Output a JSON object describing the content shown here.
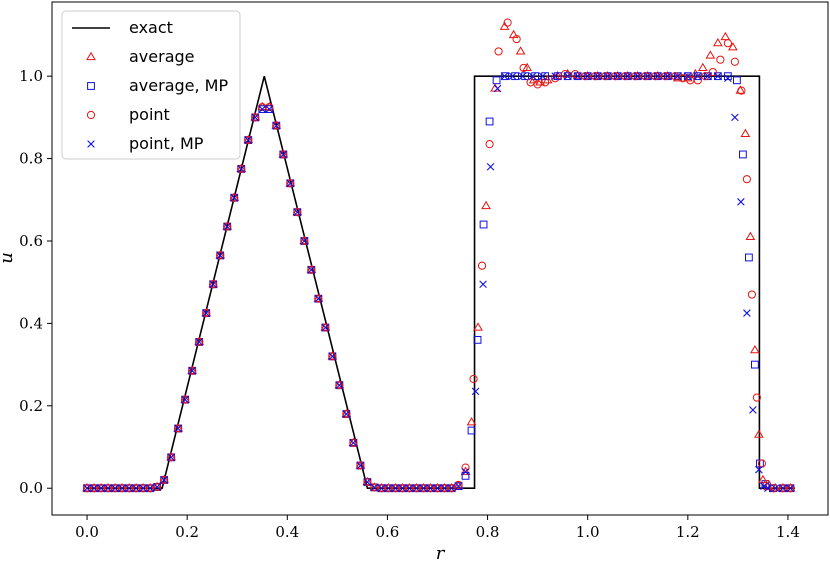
{
  "chart_data": {
    "type": "scatter",
    "xlabel": "r",
    "ylabel": "u",
    "xlim": [
      -0.07,
      1.48
    ],
    "ylim": [
      -0.065,
      1.18
    ],
    "xticks": [
      "0.0",
      "0.2",
      "0.4",
      "0.6",
      "0.8",
      "1.0",
      "1.2",
      "1.4"
    ],
    "yticks": [
      "0.0",
      "0.2",
      "0.4",
      "0.6",
      "0.8",
      "1.0"
    ],
    "xtick_values": [
      0,
      0.2,
      0.4,
      0.6,
      0.8,
      1.0,
      1.2,
      1.4
    ],
    "ytick_values": [
      0,
      0.2,
      0.4,
      0.6,
      0.8,
      1.0
    ],
    "legend_position": "top-left",
    "colors": {
      "exact": "#000000",
      "red": "#e8130e",
      "blue": "#1010e0"
    },
    "series": [
      {
        "name": "exact",
        "style": "line",
        "x": [
          0,
          0.15,
          0.354,
          0.56,
          0.774,
          0.774,
          1.343,
          1.343,
          1.414
        ],
        "y": [
          0,
          0,
          1.0,
          0,
          0,
          1.0,
          1.0,
          0,
          0
        ]
      },
      {
        "name": "average",
        "style": "triangle",
        "x": [
          0.0,
          0.014,
          0.028,
          0.042,
          0.056,
          0.07,
          0.084,
          0.098,
          0.112,
          0.126,
          0.14,
          0.154,
          0.168,
          0.182,
          0.196,
          0.21,
          0.224,
          0.238,
          0.252,
          0.266,
          0.28,
          0.294,
          0.308,
          0.322,
          0.336,
          0.35,
          0.364,
          0.378,
          0.392,
          0.406,
          0.42,
          0.434,
          0.448,
          0.462,
          0.476,
          0.49,
          0.504,
          0.518,
          0.532,
          0.546,
          0.56,
          0.574,
          0.588,
          0.602,
          0.616,
          0.63,
          0.644,
          0.658,
          0.672,
          0.686,
          0.7,
          0.714,
          0.728,
          0.742,
          0.756,
          0.768,
          0.781,
          0.797,
          0.815,
          0.834,
          0.852,
          0.866,
          0.879,
          0.892,
          0.905,
          0.92,
          0.94,
          0.96,
          0.98,
          1.0,
          1.02,
          1.04,
          1.06,
          1.08,
          1.1,
          1.12,
          1.14,
          1.16,
          1.18,
          1.2,
          1.215,
          1.23,
          1.245,
          1.26,
          1.275,
          1.29,
          1.305,
          1.315,
          1.325,
          1.334,
          1.342,
          1.35,
          1.36,
          1.375,
          1.39,
          1.405
        ],
        "y": [
          0.0,
          0.0,
          0.0,
          0.0,
          0.0,
          0.0,
          0.0,
          0.0,
          0.0,
          0.0,
          0.003,
          0.02,
          0.075,
          0.145,
          0.215,
          0.285,
          0.355,
          0.425,
          0.495,
          0.565,
          0.635,
          0.705,
          0.775,
          0.845,
          0.9,
          0.925,
          0.925,
          0.88,
          0.81,
          0.74,
          0.67,
          0.6,
          0.53,
          0.46,
          0.39,
          0.32,
          0.25,
          0.18,
          0.11,
          0.055,
          0.015,
          0.002,
          0.0,
          0.0,
          0.0,
          0.0,
          0.0,
          0.0,
          0.0,
          0.0,
          0.0,
          0.0,
          0.0,
          0.005,
          0.04,
          0.16,
          0.39,
          0.685,
          0.97,
          1.12,
          1.1,
          1.06,
          1.02,
          0.99,
          0.985,
          0.99,
          1.0,
          1.005,
          1.0,
          1.0,
          1.0,
          1.0,
          1.0,
          1.0,
          1.0,
          1.0,
          1.0,
          1.0,
          0.995,
          0.995,
          1.005,
          1.02,
          1.05,
          1.08,
          1.095,
          1.07,
          0.965,
          0.86,
          0.61,
          0.335,
          0.13,
          0.02,
          0.003,
          0.0,
          0.0,
          0.0
        ]
      },
      {
        "name": "average, MP",
        "style": "square",
        "x": [
          0.0,
          0.014,
          0.028,
          0.042,
          0.056,
          0.07,
          0.084,
          0.098,
          0.112,
          0.126,
          0.14,
          0.154,
          0.168,
          0.182,
          0.196,
          0.21,
          0.224,
          0.238,
          0.252,
          0.266,
          0.28,
          0.294,
          0.308,
          0.322,
          0.336,
          0.35,
          0.364,
          0.378,
          0.392,
          0.406,
          0.42,
          0.434,
          0.448,
          0.462,
          0.476,
          0.49,
          0.504,
          0.518,
          0.532,
          0.546,
          0.56,
          0.574,
          0.588,
          0.602,
          0.616,
          0.63,
          0.644,
          0.658,
          0.672,
          0.686,
          0.7,
          0.714,
          0.728,
          0.742,
          0.756,
          0.768,
          0.78,
          0.792,
          0.804,
          0.818,
          0.835,
          0.855,
          0.875,
          0.895,
          0.915,
          0.94,
          0.96,
          0.98,
          1.0,
          1.02,
          1.04,
          1.06,
          1.08,
          1.1,
          1.12,
          1.14,
          1.16,
          1.18,
          1.2,
          1.22,
          1.24,
          1.26,
          1.28,
          1.298,
          1.31,
          1.322,
          1.334,
          1.344,
          1.355,
          1.37,
          1.39,
          1.405
        ],
        "y": [
          0.0,
          0.0,
          0.0,
          0.0,
          0.0,
          0.0,
          0.0,
          0.0,
          0.0,
          0.0,
          0.003,
          0.02,
          0.075,
          0.145,
          0.215,
          0.285,
          0.355,
          0.425,
          0.495,
          0.565,
          0.635,
          0.705,
          0.775,
          0.845,
          0.9,
          0.92,
          0.92,
          0.88,
          0.81,
          0.74,
          0.67,
          0.6,
          0.53,
          0.46,
          0.39,
          0.32,
          0.25,
          0.18,
          0.11,
          0.055,
          0.015,
          0.002,
          0.0,
          0.0,
          0.0,
          0.0,
          0.0,
          0.0,
          0.0,
          0.0,
          0.0,
          0.0,
          0.0,
          0.005,
          0.03,
          0.14,
          0.36,
          0.64,
          0.89,
          0.99,
          1.0,
          1.0,
          1.0,
          1.0,
          1.0,
          1.0,
          1.0,
          1.0,
          1.0,
          1.0,
          1.0,
          1.0,
          1.0,
          1.0,
          1.0,
          1.0,
          1.0,
          1.0,
          1.0,
          1.0,
          1.0,
          1.0,
          1.0,
          0.99,
          0.81,
          0.56,
          0.3,
          0.06,
          0.01,
          0.0,
          0.0,
          0.0
        ]
      },
      {
        "name": "point",
        "style": "circle",
        "x": [
          0.0,
          0.014,
          0.028,
          0.042,
          0.056,
          0.07,
          0.084,
          0.098,
          0.112,
          0.126,
          0.14,
          0.154,
          0.168,
          0.182,
          0.196,
          0.21,
          0.224,
          0.238,
          0.252,
          0.266,
          0.28,
          0.294,
          0.308,
          0.322,
          0.336,
          0.35,
          0.364,
          0.378,
          0.392,
          0.406,
          0.42,
          0.434,
          0.448,
          0.462,
          0.476,
          0.49,
          0.504,
          0.518,
          0.532,
          0.546,
          0.56,
          0.574,
          0.588,
          0.602,
          0.616,
          0.63,
          0.644,
          0.658,
          0.672,
          0.686,
          0.7,
          0.714,
          0.728,
          0.742,
          0.756,
          0.772,
          0.789,
          0.804,
          0.822,
          0.84,
          0.858,
          0.872,
          0.886,
          0.9,
          0.915,
          0.935,
          0.955,
          0.975,
          0.995,
          1.015,
          1.035,
          1.055,
          1.075,
          1.095,
          1.115,
          1.135,
          1.155,
          1.175,
          1.19,
          1.205,
          1.22,
          1.235,
          1.25,
          1.265,
          1.28,
          1.294,
          1.307,
          1.318,
          1.328,
          1.338,
          1.348,
          1.358,
          1.372,
          1.39,
          1.405
        ],
        "y": [
          0.0,
          0.0,
          0.0,
          0.0,
          0.0,
          0.0,
          0.0,
          0.0,
          0.0,
          0.0,
          0.003,
          0.02,
          0.075,
          0.145,
          0.215,
          0.285,
          0.355,
          0.425,
          0.495,
          0.565,
          0.635,
          0.705,
          0.775,
          0.845,
          0.9,
          0.925,
          0.925,
          0.88,
          0.81,
          0.74,
          0.67,
          0.6,
          0.53,
          0.46,
          0.39,
          0.32,
          0.25,
          0.18,
          0.11,
          0.055,
          0.015,
          0.002,
          0.0,
          0.0,
          0.0,
          0.0,
          0.0,
          0.0,
          0.0,
          0.0,
          0.0,
          0.0,
          0.0,
          0.008,
          0.05,
          0.265,
          0.54,
          0.835,
          1.06,
          1.13,
          1.09,
          1.02,
          0.985,
          0.98,
          0.985,
          0.995,
          1.005,
          1.005,
          1.0,
          1.0,
          1.0,
          1.0,
          1.0,
          1.0,
          1.0,
          1.0,
          1.0,
          1.0,
          0.995,
          0.99,
          0.99,
          1.0,
          1.01,
          1.04,
          1.08,
          1.035,
          0.965,
          0.75,
          0.47,
          0.22,
          0.06,
          0.01,
          0.0,
          0.0,
          0.0
        ]
      },
      {
        "name": "point, MP",
        "style": "x",
        "x": [
          0.0,
          0.014,
          0.028,
          0.042,
          0.056,
          0.07,
          0.084,
          0.098,
          0.112,
          0.126,
          0.14,
          0.154,
          0.168,
          0.182,
          0.196,
          0.21,
          0.224,
          0.238,
          0.252,
          0.266,
          0.28,
          0.294,
          0.308,
          0.322,
          0.336,
          0.35,
          0.364,
          0.378,
          0.392,
          0.406,
          0.42,
          0.434,
          0.448,
          0.462,
          0.476,
          0.49,
          0.504,
          0.518,
          0.532,
          0.546,
          0.56,
          0.574,
          0.588,
          0.602,
          0.616,
          0.63,
          0.644,
          0.658,
          0.672,
          0.686,
          0.7,
          0.714,
          0.728,
          0.742,
          0.756,
          0.776,
          0.791,
          0.806,
          0.82,
          0.834,
          0.85,
          0.87,
          0.89,
          0.91,
          0.935,
          0.96,
          0.98,
          1.0,
          1.02,
          1.04,
          1.06,
          1.08,
          1.1,
          1.12,
          1.14,
          1.16,
          1.18,
          1.2,
          1.22,
          1.24,
          1.26,
          1.28,
          1.294,
          1.306,
          1.318,
          1.33,
          1.342,
          1.352,
          1.36,
          1.375,
          1.39,
          1.405
        ],
        "y": [
          0.0,
          0.0,
          0.0,
          0.0,
          0.0,
          0.0,
          0.0,
          0.0,
          0.0,
          0.0,
          0.003,
          0.02,
          0.075,
          0.145,
          0.215,
          0.285,
          0.355,
          0.425,
          0.495,
          0.565,
          0.635,
          0.705,
          0.775,
          0.845,
          0.9,
          0.92,
          0.92,
          0.88,
          0.81,
          0.74,
          0.67,
          0.6,
          0.53,
          0.46,
          0.39,
          0.32,
          0.25,
          0.18,
          0.11,
          0.055,
          0.015,
          0.002,
          0.0,
          0.0,
          0.0,
          0.0,
          0.0,
          0.0,
          0.0,
          0.0,
          0.0,
          0.0,
          0.0,
          0.005,
          0.04,
          0.235,
          0.495,
          0.78,
          0.97,
          1.0,
          1.0,
          1.0,
          1.0,
          1.0,
          1.0,
          1.0,
          1.0,
          1.0,
          1.0,
          1.0,
          1.0,
          1.0,
          1.0,
          1.0,
          1.0,
          1.0,
          1.0,
          1.0,
          1.0,
          1.0,
          1.0,
          0.995,
          0.9,
          0.695,
          0.425,
          0.19,
          0.045,
          0.005,
          0.0,
          0.0,
          0.0,
          0.0
        ]
      }
    ]
  }
}
